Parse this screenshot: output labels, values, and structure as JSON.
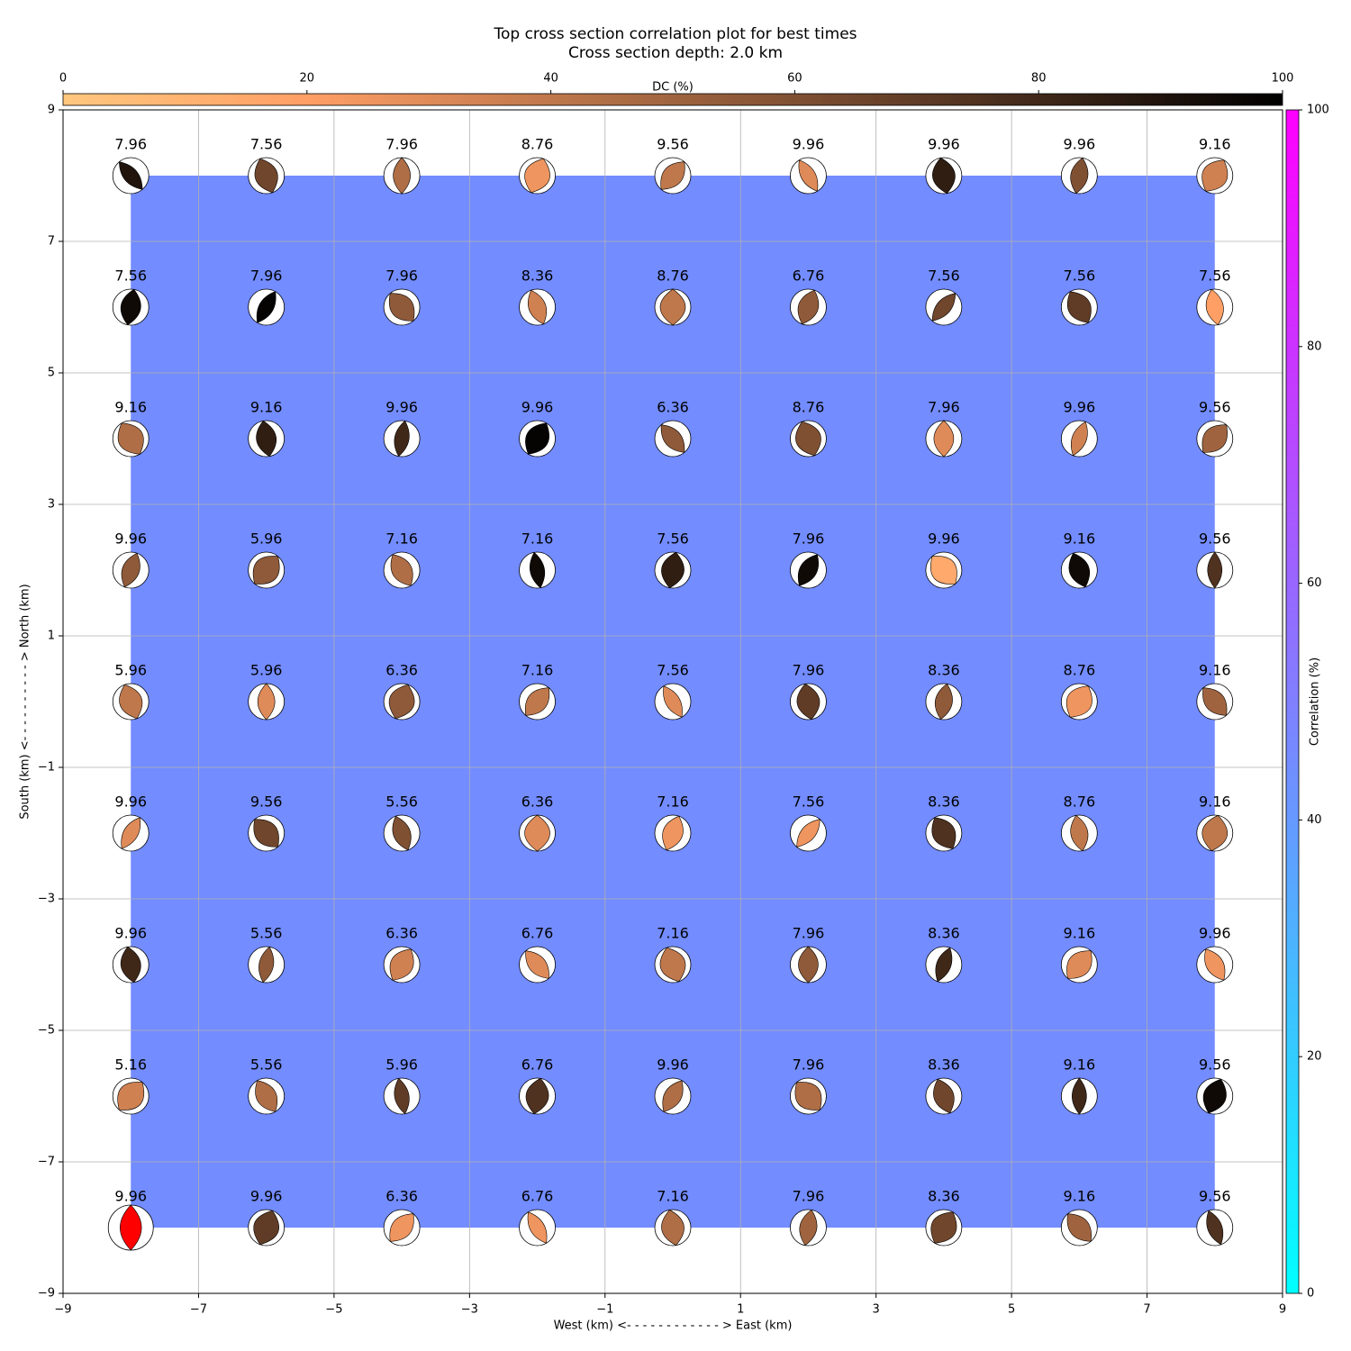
{
  "chart_data": {
    "type": "beachball-grid",
    "title": "Top cross section correlation plot for best times",
    "subtitle": "Cross section depth: 2.0 km",
    "x_label": "West (km) <- - - - - - - - - - - - > East (km)",
    "y_label": "South (km) <- - - - - - - - - - > North (km)",
    "xlim": [
      -9,
      9
    ],
    "ylim": [
      -9,
      9
    ],
    "xticks": [
      {
        "value": -9,
        "label": "−9"
      },
      {
        "value": -7,
        "label": "−7"
      },
      {
        "value": -5,
        "label": "−5"
      },
      {
        "value": -3,
        "label": "−3"
      },
      {
        "value": -1,
        "label": "−1"
      },
      1,
      3,
      5,
      7,
      9
    ],
    "yticks": [
      {
        "value": -9,
        "label": "−9"
      },
      {
        "value": -7,
        "label": "−7"
      },
      {
        "value": -5,
        "label": "−5"
      },
      {
        "value": -3,
        "label": "−3"
      },
      {
        "value": -1,
        "label": "−1"
      },
      1,
      3,
      5,
      7,
      9
    ],
    "grid": true,
    "x_positions": [
      -8,
      -6,
      -4,
      -2,
      0,
      2,
      4,
      6,
      8
    ],
    "y_positions": [
      8,
      6,
      4,
      2,
      0,
      -2,
      -4,
      -6,
      -8
    ],
    "times": [
      [
        7.96,
        7.56,
        7.96,
        8.76,
        9.56,
        9.96,
        9.96,
        9.96,
        9.16
      ],
      [
        7.56,
        7.96,
        7.96,
        8.36,
        8.76,
        6.76,
        7.56,
        7.56,
        7.56
      ],
      [
        9.16,
        9.16,
        9.96,
        9.96,
        6.36,
        8.76,
        7.96,
        9.96,
        9.56
      ],
      [
        9.96,
        5.96,
        7.16,
        7.16,
        7.56,
        7.96,
        9.96,
        9.16,
        9.56
      ],
      [
        5.96,
        5.96,
        6.36,
        7.16,
        7.56,
        7.96,
        8.36,
        8.76,
        9.16
      ],
      [
        9.96,
        9.56,
        5.56,
        6.36,
        7.16,
        7.56,
        8.36,
        8.76,
        9.16
      ],
      [
        9.96,
        5.56,
        6.36,
        6.76,
        7.16,
        7.96,
        8.36,
        9.16,
        9.96
      ],
      [
        5.16,
        5.56,
        5.96,
        6.76,
        9.96,
        7.96,
        8.36,
        9.16,
        9.56
      ],
      [
        9.96,
        9.96,
        6.36,
        6.76,
        7.16,
        7.96,
        8.36,
        9.16,
        9.56
      ]
    ],
    "dc": [
      [
        90,
        65,
        45,
        25,
        40,
        30,
        85,
        60,
        35
      ],
      [
        95,
        98,
        55,
        35,
        40,
        55,
        65,
        70,
        20
      ],
      [
        45,
        85,
        80,
        98,
        55,
        60,
        30,
        35,
        50
      ],
      [
        55,
        55,
        45,
        95,
        85,
        95,
        15,
        95,
        75
      ],
      [
        40,
        30,
        55,
        40,
        30,
        70,
        55,
        25,
        50
      ],
      [
        30,
        65,
        60,
        30,
        25,
        25,
        75,
        40,
        40
      ],
      [
        80,
        55,
        35,
        30,
        40,
        55,
        80,
        30,
        25
      ],
      [
        35,
        45,
        70,
        75,
        45,
        45,
        65,
        80,
        95
      ],
      [
        50,
        70,
        25,
        25,
        45,
        50,
        65,
        50,
        75
      ]
    ],
    "best": [
      8,
      0
    ],
    "best_color": "#ff0000",
    "dc_label": "DC (%)",
    "dc_lim": [
      0,
      100
    ],
    "dc_ticks": [
      0,
      20,
      40,
      60,
      80,
      100
    ],
    "correlation_label": "Correlation (%)",
    "correlation_lim": [
      0,
      100
    ],
    "correlation_ticks": [
      0,
      20,
      40,
      60,
      80,
      100
    ],
    "correlation": 45,
    "region_xlim": [
      -8,
      8
    ],
    "region_ylim": [
      -8,
      8
    ]
  }
}
